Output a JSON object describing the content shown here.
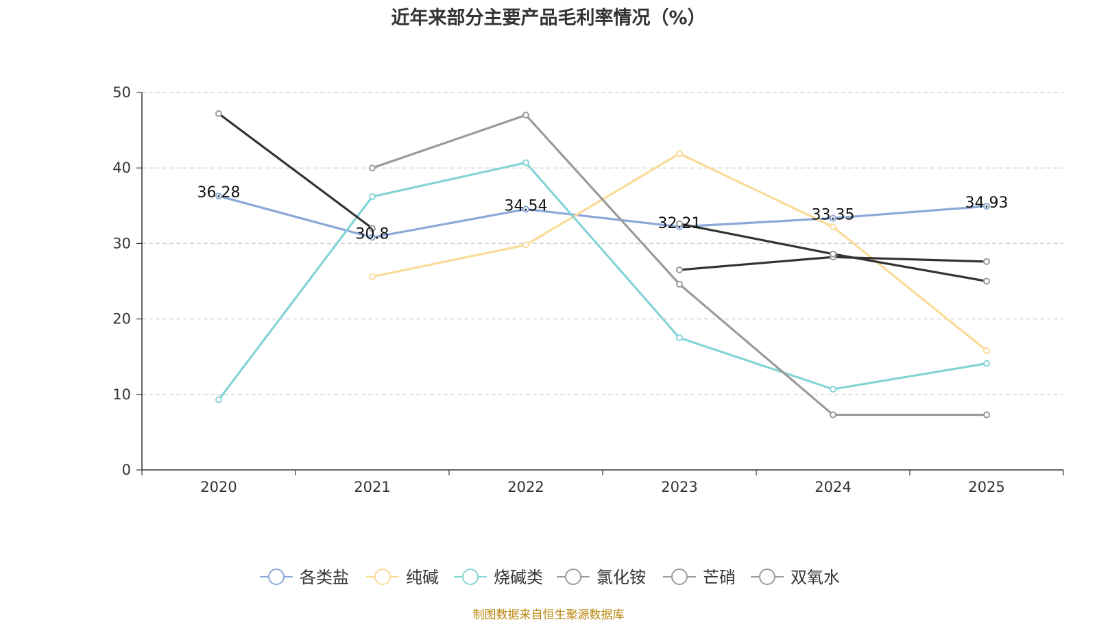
{
  "chart_data": {
    "type": "line",
    "title": "近年来部分主要产品毛利率情况（%）",
    "source": "制图数据来自恒生聚源数据库",
    "categories": [
      "2020",
      "2021",
      "2022",
      "2023",
      "2024",
      "2025"
    ],
    "ylim": [
      0,
      50
    ],
    "yticks": [
      0,
      10,
      20,
      30,
      40,
      50
    ],
    "grid": true,
    "legend_position": "bottom",
    "series": [
      {
        "name": "各类盐",
        "color": "#8ba8d8",
        "values": [
          36.28,
          30.8,
          34.54,
          32.21,
          33.35,
          34.93
        ],
        "labels": [
          "36.28",
          "30.8",
          "34.54",
          "32.21",
          "33.35",
          "34.93"
        ]
      },
      {
        "name": "纯碱",
        "color": "#fadb98",
        "values": [
          null,
          25.6,
          29.8,
          41.9,
          32.2,
          15.8
        ]
      },
      {
        "name": "烧碱类",
        "color": "#84d4d6",
        "values": [
          9.3,
          36.2,
          40.7,
          17.5,
          10.7,
          14.1
        ]
      },
      {
        "name": "氯化铵",
        "color": "#9a9a9a",
        "values": [
          null,
          40.0,
          47.0,
          24.6,
          7.3,
          7.3
        ]
      },
      {
        "name": "芒硝",
        "color": "#9a9a9a",
        "values": [
          47.2,
          32.0,
          null,
          null,
          null,
          null
        ],
        "lineColor": "#333333"
      },
      {
        "name": "芒硝",
        "color": "#9a9a9a",
        "values": [
          null,
          null,
          null,
          26.5,
          28.2,
          27.6
        ],
        "lineColor": "#333333",
        "legend": false
      },
      {
        "name": "双氧水",
        "color": "#9a9a9a",
        "values": [
          null,
          null,
          null,
          32.6,
          28.6,
          25.0
        ],
        "lineColor": "#333333"
      }
    ],
    "legend": [
      "各类盐",
      "纯碱",
      "烧碱类",
      "氯化铵",
      "芒硝",
      "双氧水"
    ],
    "legend_colors": [
      "#8ba8d8",
      "#fadb98",
      "#84d4d6",
      "#9a9a9a",
      "#9a9a9a",
      "#9a9a9a"
    ]
  }
}
